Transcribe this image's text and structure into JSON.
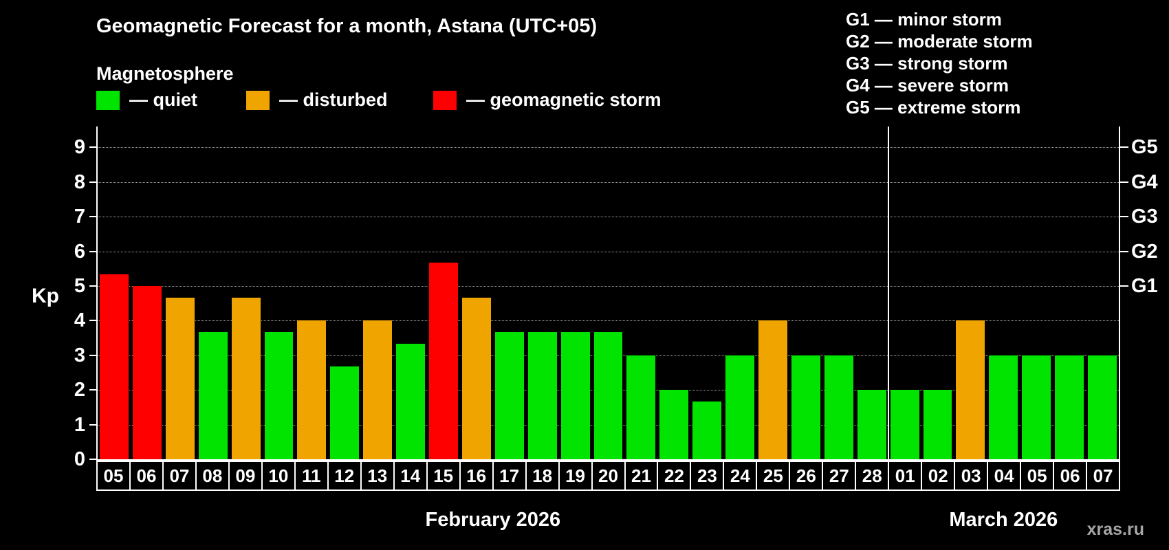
{
  "header": {
    "title": "Geomagnetic Forecast for a month, Astana (UTC+05)",
    "subtitle": "Magnetosphere"
  },
  "legend": [
    {
      "key": "quiet",
      "label": "— quiet",
      "color": "#00e400"
    },
    {
      "key": "disturbed",
      "label": "— disturbed",
      "color": "#f0a400"
    },
    {
      "key": "storm",
      "label": "— geomagnetic storm",
      "color": "#ff0000"
    }
  ],
  "storm_scale_legend": [
    "G1 — minor storm",
    "G2 — moderate storm",
    "G3 — strong storm",
    "G4 — severe storm",
    "G5 — extreme storm"
  ],
  "watermark": "xras.ru",
  "chart_data": {
    "type": "bar",
    "title": "Geomagnetic Forecast for a month, Astana (UTC+05)",
    "xlabel": "",
    "ylabel": "Kp",
    "ylim": [
      0,
      9.6
    ],
    "yticks": [
      0,
      1,
      2,
      3,
      4,
      5,
      6,
      7,
      8,
      9
    ],
    "grid": "dotted horizontal lines at integer Kp levels",
    "legend_position": "top",
    "right_axis_labels": [
      {
        "label": "G1",
        "kp": 5
      },
      {
        "label": "G2",
        "kp": 6
      },
      {
        "label": "G3",
        "kp": 7
      },
      {
        "label": "G4",
        "kp": 8
      },
      {
        "label": "G5",
        "kp": 9
      }
    ],
    "months": [
      {
        "label": "February 2026",
        "start_index": 0,
        "count": 24
      },
      {
        "label": "March 2026",
        "start_index": 24,
        "count": 7
      }
    ],
    "status_colors": {
      "quiet": "#00e400",
      "disturbed": "#f0a400",
      "storm": "#ff0000"
    },
    "bars": [
      {
        "day": "05",
        "kp": 5.33,
        "status": "storm"
      },
      {
        "day": "06",
        "kp": 5.0,
        "status": "storm"
      },
      {
        "day": "07",
        "kp": 4.67,
        "status": "disturbed"
      },
      {
        "day": "08",
        "kp": 3.67,
        "status": "quiet"
      },
      {
        "day": "09",
        "kp": 4.67,
        "status": "disturbed"
      },
      {
        "day": "10",
        "kp": 3.67,
        "status": "quiet"
      },
      {
        "day": "11",
        "kp": 4.0,
        "status": "disturbed"
      },
      {
        "day": "12",
        "kp": 2.67,
        "status": "quiet"
      },
      {
        "day": "13",
        "kp": 4.0,
        "status": "disturbed"
      },
      {
        "day": "14",
        "kp": 3.33,
        "status": "quiet"
      },
      {
        "day": "15",
        "kp": 5.67,
        "status": "storm"
      },
      {
        "day": "16",
        "kp": 4.67,
        "status": "disturbed"
      },
      {
        "day": "17",
        "kp": 3.67,
        "status": "quiet"
      },
      {
        "day": "18",
        "kp": 3.67,
        "status": "quiet"
      },
      {
        "day": "19",
        "kp": 3.67,
        "status": "quiet"
      },
      {
        "day": "20",
        "kp": 3.67,
        "status": "quiet"
      },
      {
        "day": "21",
        "kp": 3.0,
        "status": "quiet"
      },
      {
        "day": "22",
        "kp": 2.0,
        "status": "quiet"
      },
      {
        "day": "23",
        "kp": 1.67,
        "status": "quiet"
      },
      {
        "day": "24",
        "kp": 3.0,
        "status": "quiet"
      },
      {
        "day": "25",
        "kp": 4.0,
        "status": "disturbed"
      },
      {
        "day": "26",
        "kp": 3.0,
        "status": "quiet"
      },
      {
        "day": "27",
        "kp": 3.0,
        "status": "quiet"
      },
      {
        "day": "28",
        "kp": 2.0,
        "status": "quiet"
      },
      {
        "day": "01",
        "kp": 2.0,
        "status": "quiet"
      },
      {
        "day": "02",
        "kp": 2.0,
        "status": "quiet"
      },
      {
        "day": "03",
        "kp": 4.0,
        "status": "disturbed"
      },
      {
        "day": "04",
        "kp": 3.0,
        "status": "quiet"
      },
      {
        "day": "05",
        "kp": 3.0,
        "status": "quiet"
      },
      {
        "day": "06",
        "kp": 3.0,
        "status": "quiet"
      },
      {
        "day": "07",
        "kp": 3.0,
        "status": "quiet"
      }
    ]
  }
}
